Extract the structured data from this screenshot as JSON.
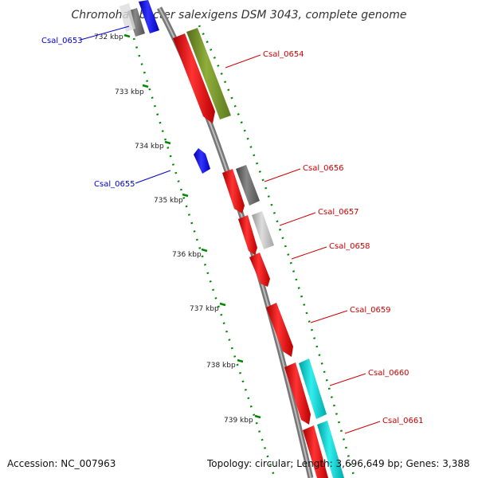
{
  "title": "Chromohalobacter salexigens DSM 3043, complete genome",
  "footer": {
    "accession": "Accession: NC_007963",
    "summary": "Topology: circular; Length: 3,696,649 bp; Genes: 3,388"
  },
  "ticks": [
    "732 kbp",
    "733 kbp",
    "734 kbp",
    "735 kbp",
    "736 kbp",
    "737 kbp",
    "738 kbp",
    "739 kbp"
  ],
  "genes": [
    {
      "name": "Csal_0653",
      "strand": "reverse",
      "color": "#0000ee"
    },
    {
      "name": "Csal_0654",
      "strand": "forward",
      "color": "#ee0000"
    },
    {
      "name": "Csal_0655",
      "strand": "reverse",
      "color": "#0000ee"
    },
    {
      "name": "Csal_0656",
      "strand": "forward",
      "color": "#ee0000"
    },
    {
      "name": "Csal_0657",
      "strand": "forward",
      "color": "#ee0000"
    },
    {
      "name": "Csal_0658",
      "strand": "forward",
      "color": "#ee0000"
    },
    {
      "name": "Csal_0659",
      "strand": "forward",
      "color": "#ee0000"
    },
    {
      "name": "Csal_0660",
      "strand": "forward",
      "color": "#ee0000"
    },
    {
      "name": "Csal_0661",
      "strand": "forward",
      "color": "#ee0000"
    }
  ],
  "colors": {
    "backbone": "#888888",
    "gc_dots": "#008800",
    "feature_green": "#6b8e23",
    "feature_gray": "#666666",
    "feature_lightgray": "#bbbbbb",
    "feature_cyan": "#00cccc"
  }
}
